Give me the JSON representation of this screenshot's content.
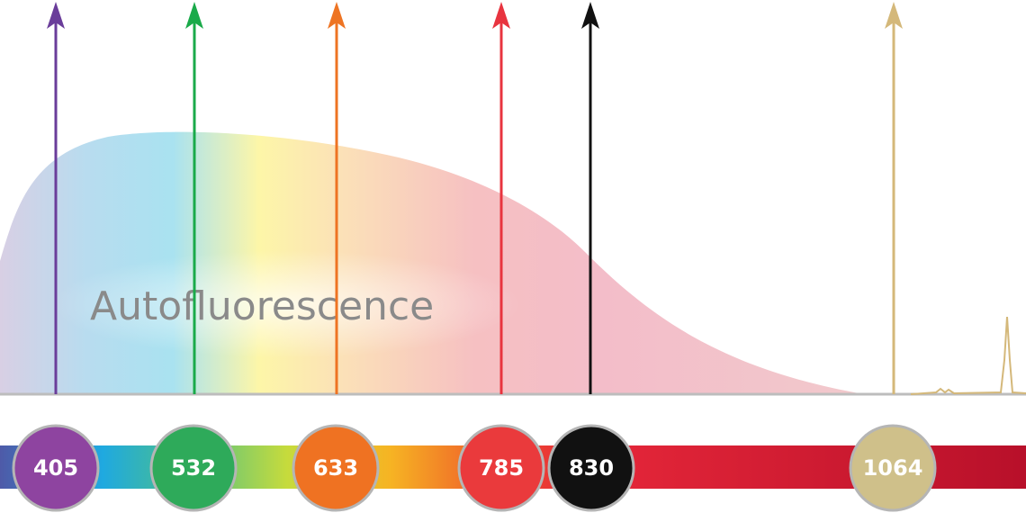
{
  "label": "Autofluorescence",
  "lasers": [
    {
      "label": "405",
      "color": "#6a3d9a",
      "badge": "#8e44a0"
    },
    {
      "label": "532",
      "color": "#1aaa4a",
      "badge": "#2eaa5a"
    },
    {
      "label": "633",
      "color": "#ee7423",
      "badge": "#ef7222"
    },
    {
      "label": "785",
      "color": "#e8343f",
      "badge": "#ea3a3c"
    },
    {
      "label": "830",
      "color": "#111111",
      "badge": "#111111"
    },
    {
      "label": "1064",
      "color": "#d4b87a",
      "badge": "#cfc08a"
    }
  ]
}
